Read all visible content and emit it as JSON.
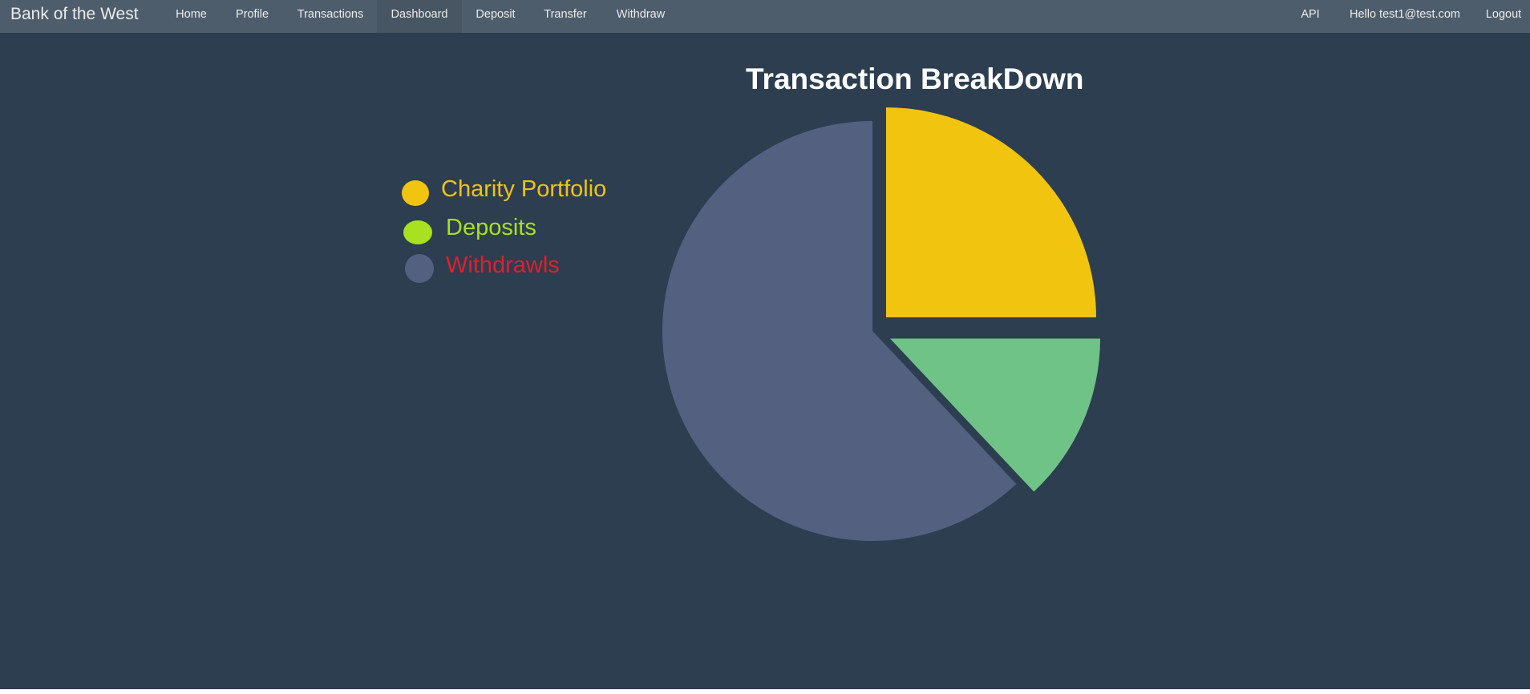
{
  "app": {
    "brand": "Bank of the West"
  },
  "nav": {
    "left": [
      {
        "label": "Home",
        "active": false
      },
      {
        "label": "Profile",
        "active": false
      },
      {
        "label": "Transactions",
        "active": false
      },
      {
        "label": "Dashboard",
        "active": true
      },
      {
        "label": "Deposit",
        "active": false
      },
      {
        "label": "Transfer",
        "active": false
      },
      {
        "label": "Withdraw",
        "active": false
      }
    ],
    "right": [
      {
        "label": "API"
      },
      {
        "label": "Hello test1@test.com"
      },
      {
        "label": "Logout"
      }
    ]
  },
  "colors": {
    "background": "#2c3e50",
    "navbar": "#4e5d6c",
    "charity": "#f1c40f",
    "deposits": "#70c387",
    "withdrawals": "#536080",
    "legend_charity_text": "#f1c40f",
    "legend_deposits_marker": "#a9e01f",
    "legend_deposits_text": "#a9e01f",
    "legend_withdrawals_text": "#e0202a"
  },
  "chart_data": {
    "type": "pie",
    "title": "Transaction BreakDown",
    "legend_position": "left",
    "slices": [
      {
        "label": "Charity Portfolio",
        "value": 25
      },
      {
        "label": "Deposits",
        "value": 13
      },
      {
        "label": "Withdrawls",
        "value": 62
      }
    ]
  }
}
